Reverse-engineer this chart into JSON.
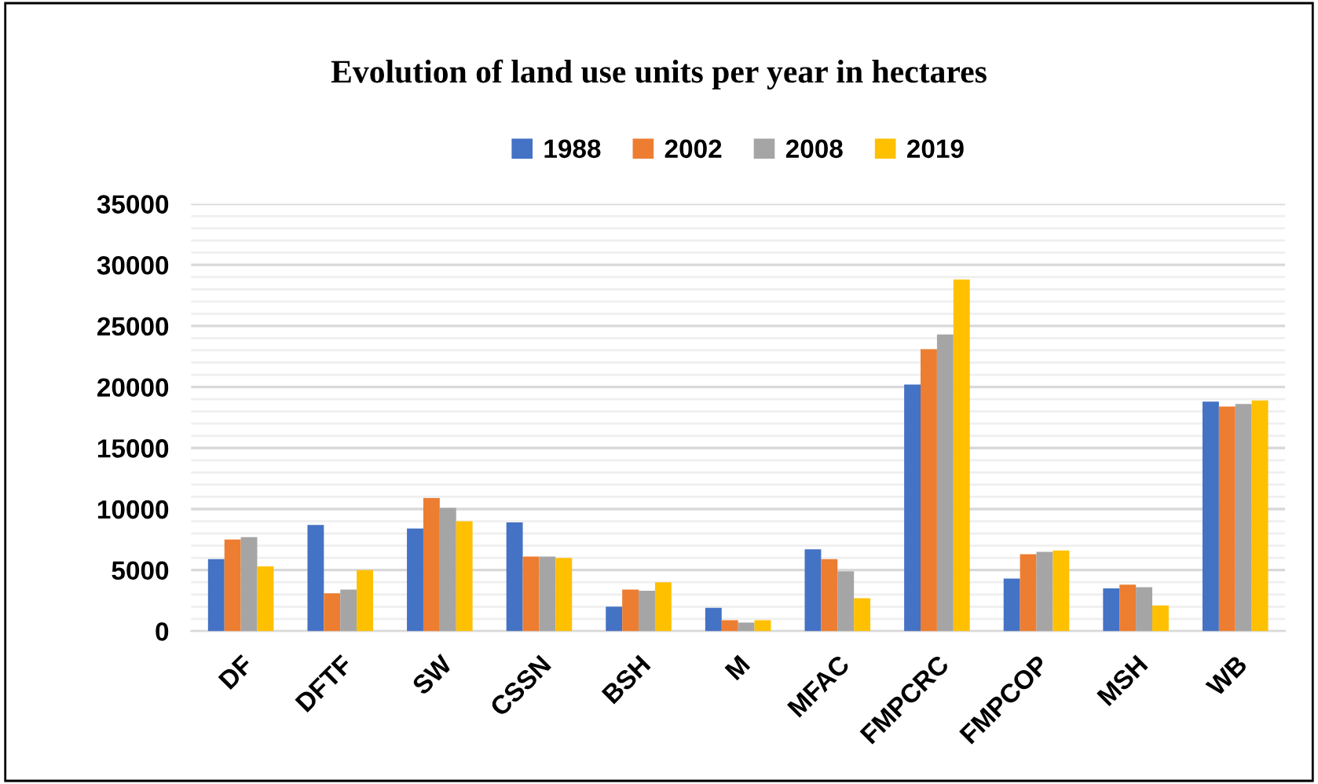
{
  "chart_data": {
    "type": "bar",
    "title": "Evolution of land use units per year in hectares",
    "categories": [
      "DF",
      "DFTF",
      "SW",
      "CSSN",
      "BSH",
      "M",
      "MFAC",
      "FMPCRC",
      "FMPCOP",
      "MSH",
      "WB"
    ],
    "series": [
      {
        "name": "1988",
        "color": "#4472c4",
        "values": [
          5900,
          8700,
          8400,
          8900,
          2000,
          1900,
          6700,
          20200,
          4300,
          3500,
          18800
        ]
      },
      {
        "name": "2002",
        "color": "#ed7d31",
        "values": [
          7500,
          3100,
          10900,
          6100,
          3400,
          900,
          5900,
          23100,
          6300,
          3800,
          18400
        ]
      },
      {
        "name": "2008",
        "color": "#a5a5a5",
        "values": [
          7700,
          3400,
          10100,
          6100,
          3300,
          700,
          4900,
          24300,
          6500,
          3600,
          18600
        ]
      },
      {
        "name": "2019",
        "color": "#ffc000",
        "values": [
          5300,
          5000,
          9000,
          6000,
          4000,
          900,
          2700,
          28800,
          6600,
          2100,
          18900
        ]
      }
    ],
    "ylim": [
      0,
      35000
    ],
    "yticks": [
      0,
      {
        "value": 1000,
        "label": null
      },
      {
        "value": 2000,
        "label": null
      },
      {
        "value": 3000,
        "label": null
      },
      {
        "value": 4000,
        "label": null
      },
      5000,
      {
        "value": 6000,
        "label": null
      },
      {
        "value": 7000,
        "label": null
      },
      {
        "value": 8000,
        "label": null
      },
      {
        "value": 9000,
        "label": null
      },
      10000,
      {
        "value": 11000,
        "label": null
      },
      {
        "value": 12000,
        "label": null
      },
      {
        "value": 13000,
        "label": null
      },
      {
        "value": 14000,
        "label": null
      },
      15000,
      {
        "value": 16000,
        "label": null
      },
      {
        "value": 17000,
        "label": null
      },
      {
        "value": 18000,
        "label": null
      },
      {
        "value": 19000,
        "label": null
      },
      20000,
      {
        "value": 21000,
        "label": null
      },
      {
        "value": 22000,
        "label": null
      },
      {
        "value": 23000,
        "label": null
      },
      {
        "value": 24000,
        "label": null
      },
      25000,
      {
        "value": 26000,
        "label": null
      },
      {
        "value": 27000,
        "label": null
      },
      {
        "value": 28000,
        "label": null
      },
      {
        "value": 29000,
        "label": null
      },
      30000,
      {
        "value": 31000,
        "label": null
      },
      {
        "value": 32000,
        "label": null
      },
      {
        "value": 33000,
        "label": null
      },
      {
        "value": 34000,
        "label": null
      },
      35000
    ],
    "grid": "y",
    "legend": "top"
  }
}
